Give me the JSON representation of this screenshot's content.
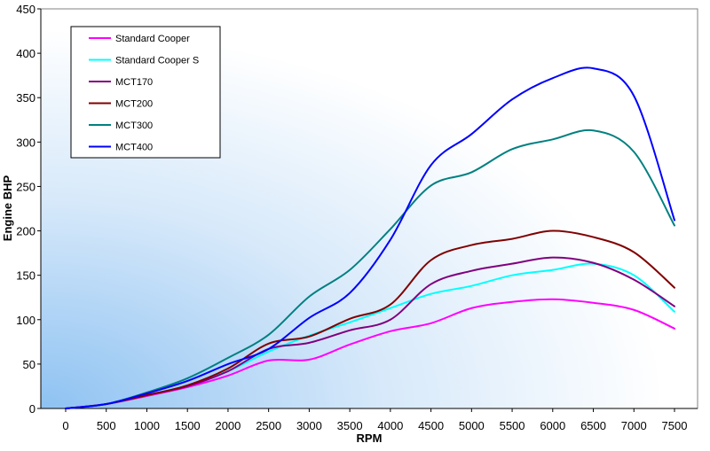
{
  "chart_data": {
    "type": "line",
    "title": "",
    "xlabel": "RPM",
    "ylabel": "Engine BHP",
    "xlim": [
      0,
      7500
    ],
    "ylim": [
      0,
      450
    ],
    "x_ticks": [
      "0",
      "500",
      "1000",
      "1500",
      "2000",
      "2500",
      "3000",
      "3500",
      "4000",
      "4500",
      "5000",
      "5500",
      "6000",
      "6500",
      "7000",
      "7500"
    ],
    "y_ticks": [
      "0",
      "50",
      "100",
      "150",
      "200",
      "250",
      "300",
      "350",
      "400",
      "450"
    ],
    "grid": false,
    "legend_position": "top-left",
    "background": "gradient light blue to white",
    "series": [
      {
        "name": "Standard Cooper",
        "color": "#ff00ff",
        "x": [
          0,
          500,
          1000,
          1500,
          2000,
          2500,
          3000,
          3500,
          4000,
          4500,
          5000,
          5500,
          6000,
          6500,
          7000,
          7500
        ],
        "y": [
          0,
          5,
          14,
          24,
          37,
          54,
          55,
          72,
          87,
          96,
          113,
          120,
          123,
          119,
          111,
          90
        ]
      },
      {
        "name": "Standard Cooper S",
        "color": "#00ffff",
        "x": [
          0,
          500,
          1000,
          1500,
          2000,
          2500,
          3000,
          3500,
          4000,
          4500,
          5000,
          5500,
          6000,
          6500,
          7000,
          7500
        ],
        "y": [
          0,
          5,
          15,
          26,
          42,
          64,
          82,
          97,
          113,
          129,
          138,
          150,
          156,
          163,
          150,
          109
        ]
      },
      {
        "name": "MCT170",
        "color": "#800080",
        "x": [
          0,
          500,
          1000,
          1500,
          2000,
          2500,
          3000,
          3500,
          4000,
          4500,
          5000,
          5500,
          6000,
          6500,
          7000,
          7500
        ],
        "y": [
          0,
          5,
          15,
          25,
          42,
          67,
          74,
          88,
          100,
          140,
          155,
          163,
          170,
          164,
          145,
          115
        ]
      },
      {
        "name": "MCT200",
        "color": "#800000",
        "x": [
          0,
          500,
          1000,
          1500,
          2000,
          2500,
          3000,
          3500,
          4000,
          4500,
          5000,
          5500,
          6000,
          6500,
          7000,
          7500
        ],
        "y": [
          0,
          5,
          15,
          26,
          45,
          73,
          81,
          101,
          117,
          167,
          184,
          191,
          200,
          193,
          176,
          136
        ]
      },
      {
        "name": "MCT300",
        "color": "#008080",
        "x": [
          0,
          500,
          1000,
          1500,
          2000,
          2500,
          3000,
          3500,
          4000,
          4500,
          5000,
          5500,
          6000,
          6500,
          7000,
          7500
        ],
        "y": [
          0,
          5,
          18,
          34,
          57,
          83,
          126,
          156,
          202,
          251,
          266,
          292,
          303,
          313,
          289,
          206
        ]
      },
      {
        "name": "MCT400",
        "color": "#0000ff",
        "x": [
          0,
          500,
          1000,
          1500,
          2000,
          2500,
          3000,
          3500,
          4000,
          4500,
          5000,
          5500,
          6000,
          6500,
          7000,
          7500
        ],
        "y": [
          0,
          5,
          17,
          31,
          50,
          67,
          102,
          130,
          190,
          274,
          309,
          348,
          372,
          383,
          352,
          212
        ]
      }
    ]
  }
}
